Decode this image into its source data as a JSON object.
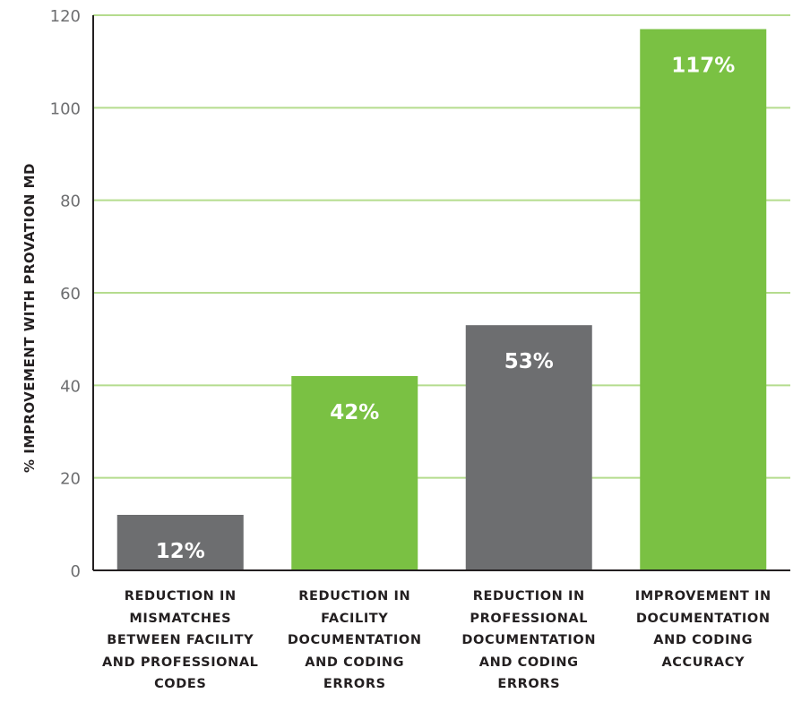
{
  "chart_data": {
    "type": "bar",
    "ylabel": "% IMPROVEMENT WITH PROVATION MD",
    "ylim": [
      0,
      120
    ],
    "yticks": [
      0,
      20,
      40,
      60,
      80,
      100,
      120
    ],
    "grid": true,
    "categories": [
      "REDUCTION IN MISMATCHES BETWEEN FACILITY AND PROFESSIONAL CODES",
      "REDUCTION IN FACILITY DOCUMENTATION AND CODING ERRORS",
      "REDUCTION IN PROFESSIONAL DOCUMENTATION AND CODING ERRORS",
      "IMPROVEMENT IN DOCUMENTATION AND CODING ACCURACY"
    ],
    "values": [
      12,
      42,
      53,
      117
    ],
    "data_labels": [
      "12%",
      "42%",
      "53%",
      "117%"
    ],
    "colors": [
      "#6d6e70",
      "#7ac143",
      "#6d6e70",
      "#7ac143"
    ],
    "grid_color": "#b5dc8e",
    "axis_color": "#231f20"
  }
}
